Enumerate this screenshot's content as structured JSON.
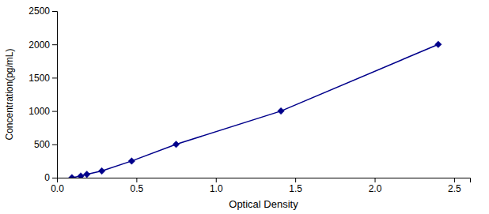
{
  "chart_data": {
    "type": "line",
    "x": [
      0.094,
      0.15,
      0.188,
      0.282,
      0.47,
      0.75,
      1.41,
      2.4
    ],
    "values": [
      0,
      25,
      50,
      100,
      250,
      500,
      1000,
      2000
    ],
    "color": "#00008B",
    "marker": "diamond",
    "xlabel": "Optical Density",
    "ylabel": "Concentration(pg/mL)",
    "xlim": [
      0,
      2.6
    ],
    "ylim": [
      0,
      2500
    ],
    "xticks": [
      {
        "value": 0,
        "label": "0.0"
      },
      0.5,
      {
        "value": 1,
        "label": "1.0"
      },
      1.5,
      {
        "value": 2,
        "label": "2.0"
      },
      2.5
    ],
    "yticks": [
      0,
      500,
      1000,
      1500,
      2000,
      2500
    ]
  }
}
